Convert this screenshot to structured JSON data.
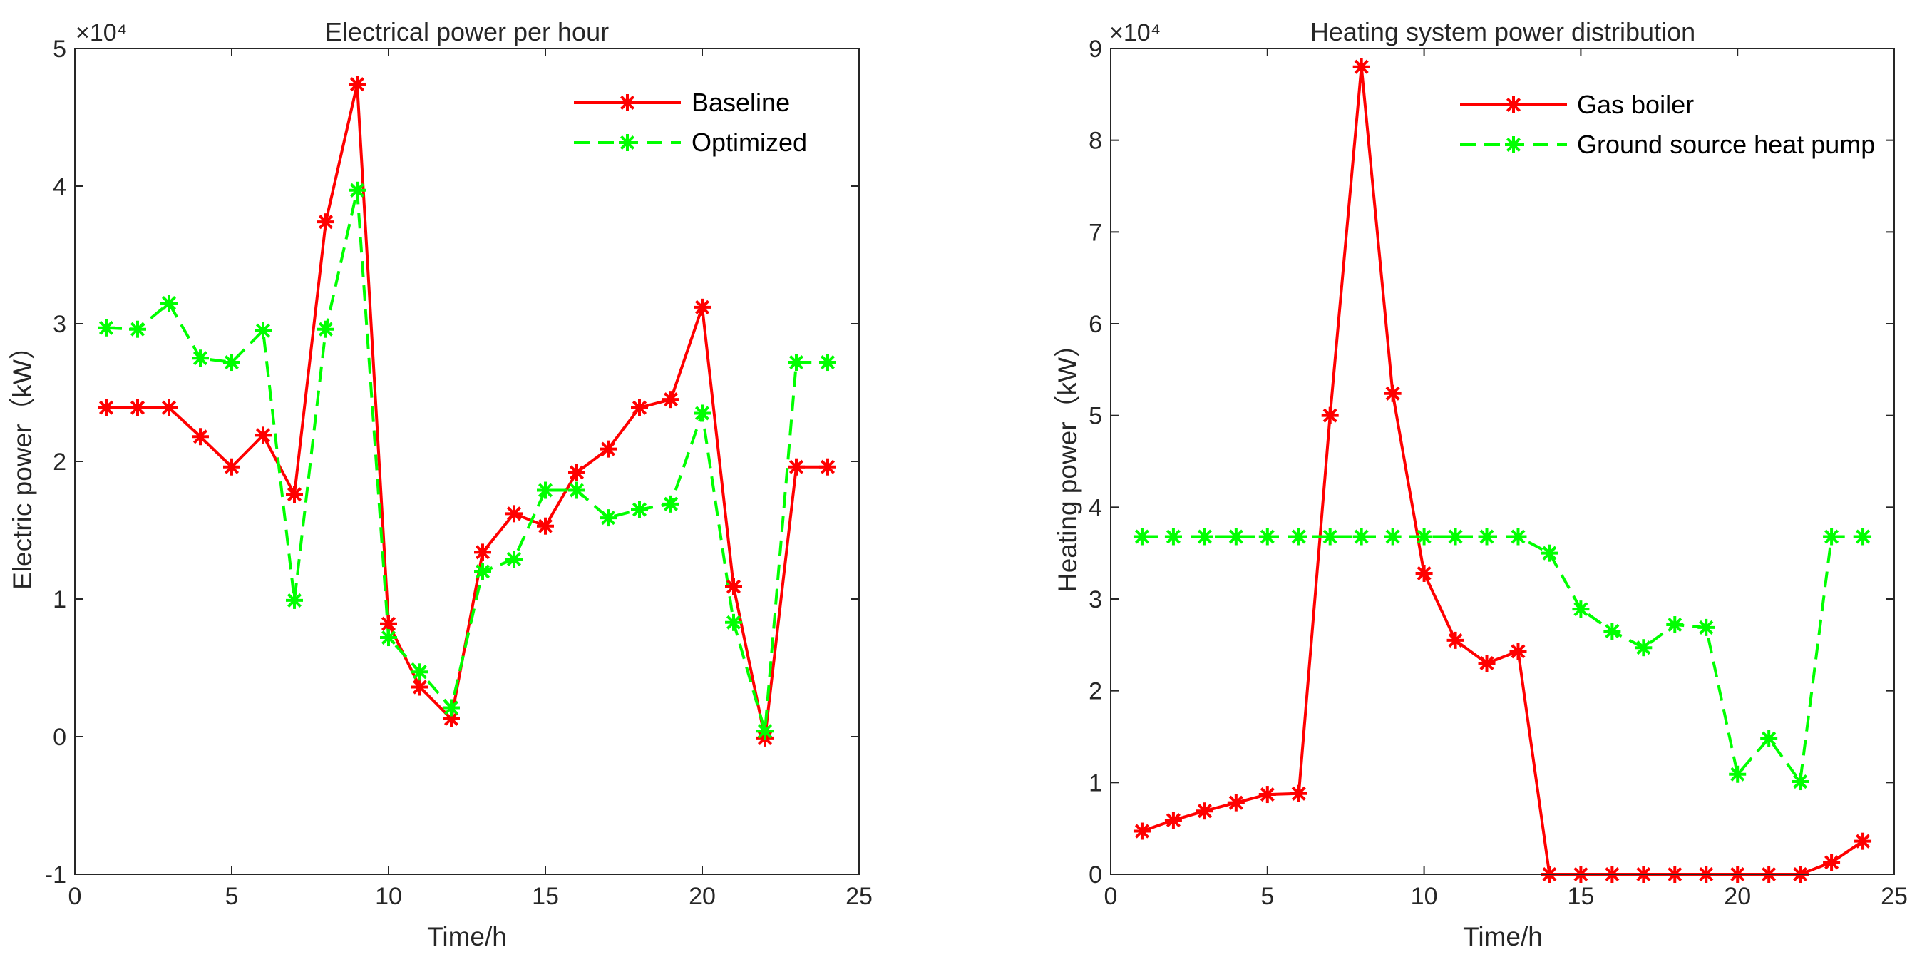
{
  "chart_data": [
    {
      "type": "line",
      "title": "Electrical power per hour",
      "xlabel": "Time/h",
      "ylabel": "Electric power（kW）",
      "y_exponent_label": "×10⁴",
      "xlim": [
        0,
        25
      ],
      "ylim": [
        -10000,
        50000
      ],
      "x_ticks": [
        0,
        5,
        10,
        15,
        20,
        25
      ],
      "y_ticks": [
        -10000,
        0,
        10000,
        20000,
        30000,
        40000,
        50000
      ],
      "y_tick_labels": [
        "-1",
        "0",
        "1",
        "2",
        "3",
        "4",
        "5"
      ],
      "grid": false,
      "legend_position": "top-right",
      "x": [
        1,
        2,
        3,
        4,
        5,
        6,
        7,
        8,
        9,
        10,
        11,
        12,
        13,
        14,
        15,
        16,
        17,
        18,
        19,
        20,
        21,
        22,
        23,
        24
      ],
      "series": [
        {
          "name": "Baseline",
          "color": "#ff0000",
          "style": "solid",
          "marker": "asterisk",
          "values": [
            23900,
            23900,
            23900,
            21800,
            19600,
            21900,
            17600,
            37400,
            47400,
            8200,
            3600,
            1300,
            13400,
            16200,
            15300,
            19200,
            20900,
            23900,
            24500,
            31200,
            10900,
            -100,
            19600,
            19600
          ]
        },
        {
          "name": "Optimized",
          "color": "#00ff00",
          "style": "dashed",
          "marker": "asterisk",
          "values": [
            29700,
            29600,
            31500,
            27500,
            27200,
            29500,
            9900,
            29600,
            39700,
            7200,
            4700,
            2100,
            12000,
            12900,
            17900,
            17900,
            15900,
            16500,
            16900,
            23500,
            8300,
            400,
            27200,
            27200
          ]
        }
      ]
    },
    {
      "type": "line",
      "title": "Heating system power distribution",
      "xlabel": "Time/h",
      "ylabel": "Heating power（kW）",
      "y_exponent_label": "×10⁴",
      "xlim": [
        0,
        25
      ],
      "ylim": [
        0,
        90000
      ],
      "x_ticks": [
        0,
        5,
        10,
        15,
        20,
        25
      ],
      "y_ticks": [
        0,
        10000,
        20000,
        30000,
        40000,
        50000,
        60000,
        70000,
        80000,
        90000
      ],
      "y_tick_labels": [
        "0",
        "1",
        "2",
        "3",
        "4",
        "5",
        "6",
        "7",
        "8",
        "9"
      ],
      "grid": false,
      "legend_position": "top-right",
      "x": [
        1,
        2,
        3,
        4,
        5,
        6,
        7,
        8,
        9,
        10,
        11,
        12,
        13,
        14,
        15,
        16,
        17,
        18,
        19,
        20,
        21,
        22,
        23,
        24
      ],
      "series": [
        {
          "name": "Gas boiler",
          "color": "#ff0000",
          "style": "solid",
          "marker": "asterisk",
          "values": [
            4700,
            5900,
            6900,
            7800,
            8700,
            8800,
            50000,
            88000,
            52400,
            32800,
            25500,
            23000,
            24300,
            0,
            0,
            0,
            0,
            0,
            0,
            0,
            0,
            0,
            1300,
            3600
          ]
        },
        {
          "name": "Ground source heat pump",
          "color": "#00ff00",
          "style": "dashed",
          "marker": "asterisk",
          "values": [
            36800,
            36800,
            36800,
            36800,
            36800,
            36800,
            36800,
            36800,
            36800,
            36800,
            36800,
            36800,
            36800,
            35000,
            28900,
            26500,
            24700,
            27200,
            26900,
            10900,
            14800,
            10100,
            36800,
            36800
          ]
        }
      ]
    }
  ]
}
